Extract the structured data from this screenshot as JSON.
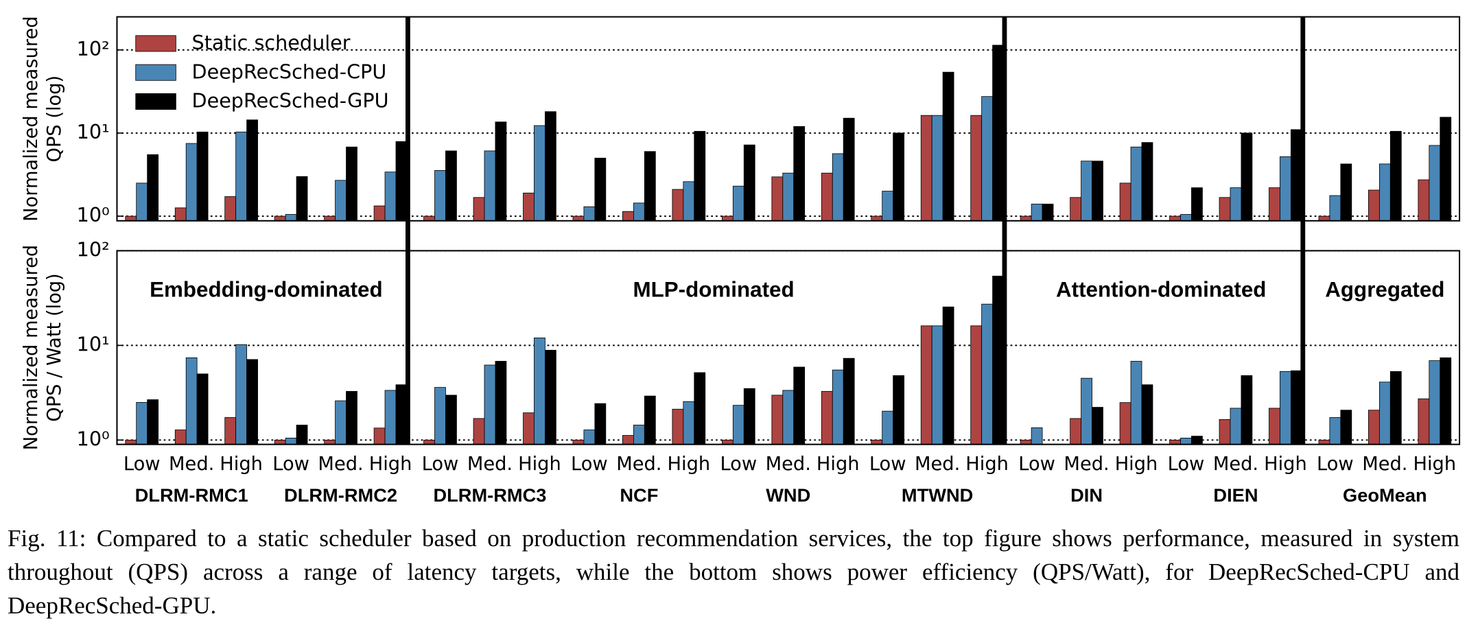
{
  "chart_data": {
    "type": "bar",
    "log_scale": true,
    "grid": true,
    "sections": [
      {
        "label": "Embedding-dominated",
        "groups": [
          {
            "name": "DLRM-RMC1",
            "categories": [
              "Low",
              "Med.",
              "High"
            ]
          },
          {
            "name": "DLRM-RMC2",
            "categories": [
              "Low",
              "Med.",
              "High"
            ]
          }
        ]
      },
      {
        "label": "MLP-dominated",
        "groups": [
          {
            "name": "DLRM-RMC3",
            "categories": [
              "Low",
              "Med.",
              "High"
            ]
          },
          {
            "name": "NCF",
            "categories": [
              "Low",
              "Med.",
              "High"
            ]
          },
          {
            "name": "WND",
            "categories": [
              "Low",
              "Med.",
              "High"
            ]
          },
          {
            "name": "MTWND",
            "categories": [
              "Low",
              "Med.",
              "High"
            ]
          }
        ]
      },
      {
        "label": "Attention-dominated",
        "groups": [
          {
            "name": "DIN",
            "categories": [
              "Low",
              "Med.",
              "High"
            ]
          },
          {
            "name": "DIEN",
            "categories": [
              "Low",
              "Med.",
              "High"
            ]
          }
        ]
      },
      {
        "label": "Aggregated",
        "groups": [
          {
            "name": "GeoMean",
            "categories": [
              "Low",
              "Med.",
              "High"
            ]
          }
        ]
      }
    ],
    "panels": [
      {
        "ylabel": [
          "Normalized measured",
          "QPS (log)"
        ],
        "ylim": [
          0.88,
          250
        ],
        "yticks": [
          {
            "value": 1,
            "label": "10⁰"
          },
          {
            "value": 10,
            "label": "10¹"
          },
          {
            "value": 100,
            "label": "10²"
          }
        ],
        "legend": "upper left",
        "series": [
          {
            "name": "Static scheduler",
            "color": "#ad4441",
            "values": [
              1.0,
              1.26,
              1.72,
              1.0,
              1.0,
              1.33,
              1.0,
              1.68,
              1.9,
              1.0,
              1.14,
              2.1,
              1.0,
              2.97,
              3.3,
              1.0,
              16.3,
              16.3,
              1.0,
              1.68,
              2.5,
              1.0,
              1.68,
              2.2,
              1.0,
              2.06,
              2.74
            ]
          },
          {
            "name": "DeepRecSched-CPU",
            "color": "#4a86b5",
            "values": [
              2.5,
              7.5,
              10.3,
              1.05,
              2.7,
              3.4,
              3.55,
              6.1,
              12.3,
              1.3,
              1.44,
              2.6,
              2.3,
              3.3,
              5.65,
              2.0,
              16.3,
              27.5,
              1.4,
              4.6,
              6.8,
              1.05,
              2.2,
              5.2,
              1.77,
              4.25,
              7.1
            ]
          },
          {
            "name": "DeepRecSched-GPU",
            "color": "#000000",
            "values": [
              5.5,
              10.3,
              14.4,
              3.0,
              6.8,
              7.9,
              6.1,
              13.6,
              18.1,
              5.0,
              6.0,
              10.5,
              7.2,
              12.0,
              15.1,
              10.0,
              54,
              114,
              1.4,
              4.6,
              7.7,
              2.2,
              10.0,
              11.0,
              4.25,
              10.5,
              15.5
            ]
          }
        ]
      },
      {
        "ylabel": [
          "Normalized measured",
          "QPS / Watt (log)"
        ],
        "ylim": [
          0.9,
          100
        ],
        "yticks": [
          {
            "value": 1,
            "label": "10⁰"
          },
          {
            "value": 10,
            "label": "10¹"
          },
          {
            "value": 100,
            "label": "10²"
          }
        ],
        "series": [
          {
            "color": "#ad4441",
            "values": [
              1.0,
              1.28,
              1.73,
              1.0,
              1.0,
              1.34,
              1.0,
              1.69,
              1.94,
              1.0,
              1.12,
              2.12,
              1.0,
              2.98,
              3.27,
              1.0,
              16.1,
              16.1,
              1.0,
              1.69,
              2.49,
              1.0,
              1.65,
              2.17,
              1.0,
              2.07,
              2.73
            ]
          },
          {
            "color": "#4a86b5",
            "values": [
              2.5,
              7.4,
              10.2,
              1.05,
              2.6,
              3.35,
              3.6,
              6.2,
              12.0,
              1.28,
              1.44,
              2.55,
              2.33,
              3.35,
              5.5,
              2.02,
              16.1,
              27.3,
              1.35,
              4.5,
              6.8,
              1.05,
              2.17,
              5.3,
              1.73,
              4.1,
              6.9
            ]
          },
          {
            "color": "#000000",
            "values": [
              2.67,
              5.0,
              7.1,
              1.44,
              3.27,
              3.84,
              2.98,
              6.8,
              8.9,
              2.43,
              2.92,
              5.16,
              3.5,
              5.9,
              7.3,
              4.8,
              25.5,
              54,
              null,
              2.22,
              3.84,
              1.1,
              4.8,
              5.4,
              2.07,
              5.3,
              7.4
            ]
          }
        ]
      }
    ]
  },
  "caption": "Fig. 11: Compared to a static scheduler based on production recommendation services, the top figure shows performance, measured in system throughout (QPS) across a range of latency targets, while the bottom shows power efficiency (QPS/Watt), for DeepRecSched-CPU and DeepRecSched-GPU."
}
